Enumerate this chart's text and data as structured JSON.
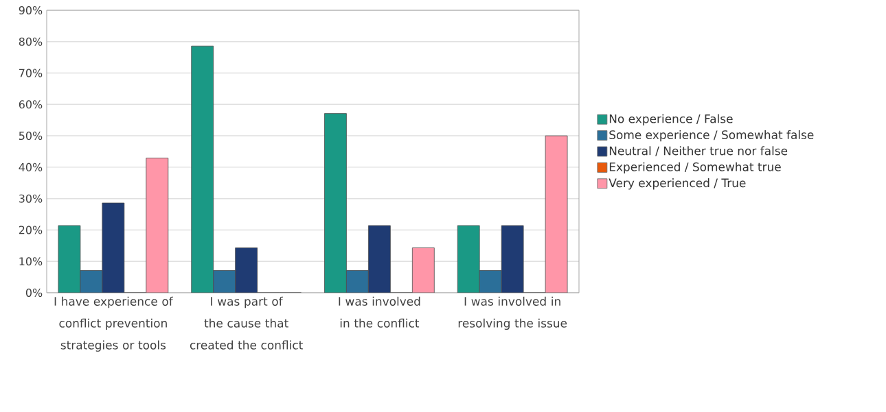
{
  "chart_data": {
    "type": "bar",
    "categories": [
      "I have experience of conflict prevention strategies or tools",
      "I was part of the cause that created the conflict",
      "I was involved in the conflict",
      "I was involved in resolving the issue"
    ],
    "series": [
      {
        "name": "No experience / False",
        "color": "#1a9985",
        "values": [
          21.4,
          78.6,
          57.1,
          21.4
        ]
      },
      {
        "name": "Some experience / Somewhat false",
        "color": "#2b6f99",
        "values": [
          7.1,
          7.1,
          7.1,
          7.1
        ]
      },
      {
        "name": "Neutral / Neither true nor false",
        "color": "#1f3b73",
        "values": [
          28.6,
          14.3,
          21.4,
          21.4
        ]
      },
      {
        "name": "Experienced / Somewhat true",
        "color": "#e8590c",
        "values": [
          0,
          0,
          0,
          0
        ]
      },
      {
        "name": "Very experienced / True",
        "color": "#ff96a8",
        "values": [
          42.9,
          0,
          14.3,
          50
        ]
      }
    ],
    "ylim": [
      0,
      90
    ],
    "yticks": [
      {
        "value": 0,
        "label": "0%"
      },
      {
        "value": 10,
        "label": "10%"
      },
      {
        "value": 20,
        "label": "20%"
      },
      {
        "value": 30,
        "label": "30%"
      },
      {
        "value": 40,
        "label": "40%"
      },
      {
        "value": 50,
        "label": "50%"
      },
      {
        "value": 60,
        "label": "60%"
      },
      {
        "value": 70,
        "label": "70%"
      },
      {
        "value": 80,
        "label": "80%"
      },
      {
        "value": 90,
        "label": "90%"
      }
    ],
    "grid": "y",
    "legend": "right"
  }
}
